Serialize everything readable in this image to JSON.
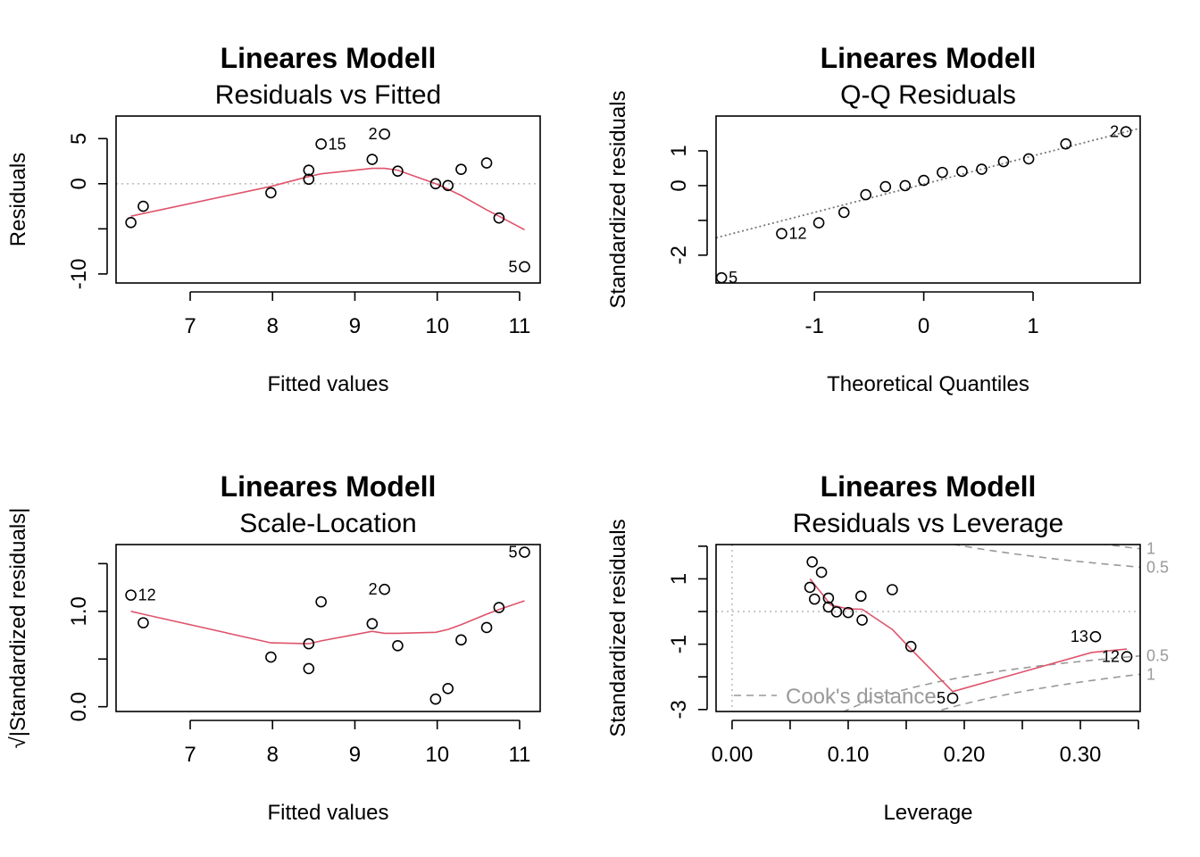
{
  "chart_data": [
    {
      "type": "scatter",
      "title": "Lineares Modell",
      "subtitle": "Residuals vs Fitted",
      "xlabel": "Fitted values",
      "ylabel": "Residuals",
      "xlim": [
        6.1,
        11.25
      ],
      "ylim": [
        -11,
        7.5
      ],
      "xticks": [
        7,
        8,
        9,
        10,
        11
      ],
      "yticks": [
        -10,
        -5,
        0,
        5
      ],
      "ytick_labels": [
        "-10",
        "",
        "0",
        "5"
      ],
      "points": [
        {
          "x": 6.28,
          "y": -4.3
        },
        {
          "x": 6.43,
          "y": -2.5
        },
        {
          "x": 7.98,
          "y": -1.0
        },
        {
          "x": 8.44,
          "y": 0.5
        },
        {
          "x": 8.44,
          "y": 1.5
        },
        {
          "x": 8.59,
          "y": 4.4
        },
        {
          "x": 9.21,
          "y": 2.7
        },
        {
          "x": 9.36,
          "y": 5.5
        },
        {
          "x": 9.52,
          "y": 1.4
        },
        {
          "x": 9.98,
          "y": 0.0
        },
        {
          "x": 10.13,
          "y": -0.2
        },
        {
          "x": 10.29,
          "y": 1.6
        },
        {
          "x": 10.6,
          "y": 2.3
        },
        {
          "x": 10.75,
          "y": -3.8
        },
        {
          "x": 11.06,
          "y": -9.2
        }
      ],
      "point_labels": [
        {
          "text": "15",
          "index": 5,
          "side": "right"
        },
        {
          "text": "2",
          "index": 7,
          "side": "left"
        },
        {
          "text": "5",
          "index": 14,
          "side": "left"
        }
      ],
      "smooth": [
        {
          "x": 6.28,
          "y": -3.6
        },
        {
          "x": 6.43,
          "y": -3.3
        },
        {
          "x": 7.98,
          "y": -0.3
        },
        {
          "x": 8.44,
          "y": 0.8
        },
        {
          "x": 8.59,
          "y": 1.1
        },
        {
          "x": 9.21,
          "y": 1.7
        },
        {
          "x": 9.36,
          "y": 1.7
        },
        {
          "x": 9.52,
          "y": 1.5
        },
        {
          "x": 9.98,
          "y": 0.0
        },
        {
          "x": 10.13,
          "y": -0.6
        },
        {
          "x": 10.29,
          "y": -1.3
        },
        {
          "x": 10.6,
          "y": -2.9
        },
        {
          "x": 10.75,
          "y": -3.6
        },
        {
          "x": 11.06,
          "y": -5.1
        }
      ],
      "hline": 0,
      "grid": false
    },
    {
      "type": "scatter",
      "title": "Lineares Modell",
      "subtitle": "Q-Q Residuals",
      "xlabel": "Theoretical Quantiles",
      "ylabel": "Standardized residuals",
      "xlim": [
        -1.9,
        1.98
      ],
      "ylim": [
        -2.8,
        2.0
      ],
      "xticks": [
        -1,
        0,
        1
      ],
      "yticks": [
        -2,
        -1,
        0,
        1
      ],
      "ytick_labels": [
        "-2",
        "",
        "0",
        "1"
      ],
      "points": [
        {
          "x": -1.85,
          "y": -2.65
        },
        {
          "x": -1.3,
          "y": -1.38
        },
        {
          "x": -0.96,
          "y": -1.07
        },
        {
          "x": -0.73,
          "y": -0.77
        },
        {
          "x": -0.53,
          "y": -0.26
        },
        {
          "x": -0.35,
          "y": -0.03
        },
        {
          "x": -0.17,
          "y": 0.0
        },
        {
          "x": 0.0,
          "y": 0.15
        },
        {
          "x": 0.17,
          "y": 0.38
        },
        {
          "x": 0.35,
          "y": 0.41
        },
        {
          "x": 0.53,
          "y": 0.47
        },
        {
          "x": 0.73,
          "y": 0.69
        },
        {
          "x": 0.96,
          "y": 0.77
        },
        {
          "x": 1.3,
          "y": 1.2
        },
        {
          "x": 1.85,
          "y": 1.55
        }
      ],
      "point_labels": [
        {
          "text": "5",
          "index": 0,
          "side": "right"
        },
        {
          "text": "12",
          "index": 1,
          "side": "right"
        },
        {
          "text": "2",
          "index": 14,
          "side": "left"
        }
      ],
      "refline": {
        "x0": -1.9,
        "y0": -1.5,
        "x1": 1.98,
        "y1": 1.65
      },
      "grid": false
    },
    {
      "type": "scatter",
      "title": "Lineares Modell",
      "subtitle": "Scale-Location",
      "xlabel": "Fitted values",
      "ylabel": "√|Standardized residuals|",
      "xlim": [
        6.1,
        11.25
      ],
      "ylim": [
        -0.05,
        1.7
      ],
      "xticks": [
        7,
        8,
        9,
        10,
        11
      ],
      "yticks": [
        0.0,
        0.5,
        1.0,
        1.5
      ],
      "ytick_labels": [
        "0.0",
        "",
        "1.0",
        ""
      ],
      "points": [
        {
          "x": 6.28,
          "y": 1.17
        },
        {
          "x": 6.43,
          "y": 0.88
        },
        {
          "x": 7.98,
          "y": 0.52
        },
        {
          "x": 8.44,
          "y": 0.4
        },
        {
          "x": 8.44,
          "y": 0.66
        },
        {
          "x": 8.59,
          "y": 1.1
        },
        {
          "x": 9.21,
          "y": 0.87
        },
        {
          "x": 9.36,
          "y": 1.23
        },
        {
          "x": 9.52,
          "y": 0.64
        },
        {
          "x": 9.98,
          "y": 0.08
        },
        {
          "x": 10.13,
          "y": 0.19
        },
        {
          "x": 10.29,
          "y": 0.7
        },
        {
          "x": 10.6,
          "y": 0.83
        },
        {
          "x": 10.75,
          "y": 1.04
        },
        {
          "x": 11.06,
          "y": 1.62
        }
      ],
      "point_labels": [
        {
          "text": "12",
          "index": 0,
          "side": "right"
        },
        {
          "text": "2",
          "index": 7,
          "side": "left"
        },
        {
          "text": "5",
          "index": 14,
          "side": "left"
        }
      ],
      "smooth": [
        {
          "x": 6.28,
          "y": 1.0
        },
        {
          "x": 6.43,
          "y": 0.97
        },
        {
          "x": 7.98,
          "y": 0.67
        },
        {
          "x": 8.44,
          "y": 0.66
        },
        {
          "x": 8.59,
          "y": 0.69
        },
        {
          "x": 9.21,
          "y": 0.79
        },
        {
          "x": 9.36,
          "y": 0.77
        },
        {
          "x": 9.52,
          "y": 0.77
        },
        {
          "x": 9.98,
          "y": 0.78
        },
        {
          "x": 10.13,
          "y": 0.81
        },
        {
          "x": 10.29,
          "y": 0.86
        },
        {
          "x": 10.6,
          "y": 0.97
        },
        {
          "x": 10.75,
          "y": 1.02
        },
        {
          "x": 11.06,
          "y": 1.11
        }
      ],
      "grid": false
    },
    {
      "type": "scatter",
      "title": "Lineares Modell",
      "subtitle": "Residuals vs Leverage",
      "xlabel": "Leverage",
      "ylabel": "Standardized residuals",
      "xlim": [
        -0.0138,
        0.3515
      ],
      "ylim": [
        -3.06,
        2.05
      ],
      "xticks": [
        0.0,
        0.05,
        0.1,
        0.15,
        0.2,
        0.25,
        0.3,
        0.35
      ],
      "xtick_labels": [
        "0.00",
        "",
        "0.10",
        "",
        "0.20",
        "",
        "0.30",
        ""
      ],
      "yticks": [
        -3,
        -2,
        -1,
        0,
        1,
        2
      ],
      "ytick_labels": [
        "-3",
        "",
        "-1",
        "",
        "1",
        ""
      ],
      "points": [
        {
          "x": 0.067,
          "y": 0.74
        },
        {
          "x": 0.069,
          "y": 1.52
        },
        {
          "x": 0.071,
          "y": 0.38
        },
        {
          "x": 0.077,
          "y": 1.2
        },
        {
          "x": 0.083,
          "y": 0.41
        },
        {
          "x": 0.083,
          "y": 0.14
        },
        {
          "x": 0.09,
          "y": -0.01
        },
        {
          "x": 0.1,
          "y": -0.03
        },
        {
          "x": 0.111,
          "y": 0.47
        },
        {
          "x": 0.112,
          "y": -0.26
        },
        {
          "x": 0.138,
          "y": 0.67
        },
        {
          "x": 0.154,
          "y": -1.07
        },
        {
          "x": 0.19,
          "y": -2.65
        },
        {
          "x": 0.313,
          "y": -0.77
        },
        {
          "x": 0.34,
          "y": -1.38
        }
      ],
      "point_labels": [
        {
          "text": "13",
          "index": 13,
          "side": "left"
        },
        {
          "text": "12",
          "index": 14,
          "side": "left"
        },
        {
          "text": "5",
          "index": 12,
          "side": "left"
        }
      ],
      "smooth": [
        {
          "x": 0.067,
          "y": 1.0
        },
        {
          "x": 0.075,
          "y": 0.65
        },
        {
          "x": 0.085,
          "y": 0.2
        },
        {
          "x": 0.1,
          "y": 0.08
        },
        {
          "x": 0.112,
          "y": 0.07
        },
        {
          "x": 0.138,
          "y": -0.55
        },
        {
          "x": 0.154,
          "y": -1.15
        },
        {
          "x": 0.19,
          "y": -2.45
        },
        {
          "x": 0.31,
          "y": -1.25
        },
        {
          "x": 0.34,
          "y": -1.15
        }
      ],
      "cooks_curves": [
        {
          "label": "1",
          "level": 1,
          "sign": 1,
          "from": 0.19
        },
        {
          "label": "0.5",
          "level": 0.5,
          "sign": 1,
          "from": 0.19
        },
        {
          "label": "0.5",
          "level": 0.5,
          "sign": -1,
          "from": 0.095
        },
        {
          "label": "1",
          "level": 1,
          "sign": -1,
          "from": 0.17
        }
      ],
      "cooks_p": 2,
      "legend": {
        "label": "Cook's distance",
        "position": "bottom-left"
      },
      "hline": 0,
      "vline": 0,
      "grid": false
    }
  ],
  "colors": {
    "smooth": "#DF536B",
    "reference": "#BEBEBE",
    "cooks": "#999999",
    "qqline": "#777777",
    "axis": "#000000"
  }
}
